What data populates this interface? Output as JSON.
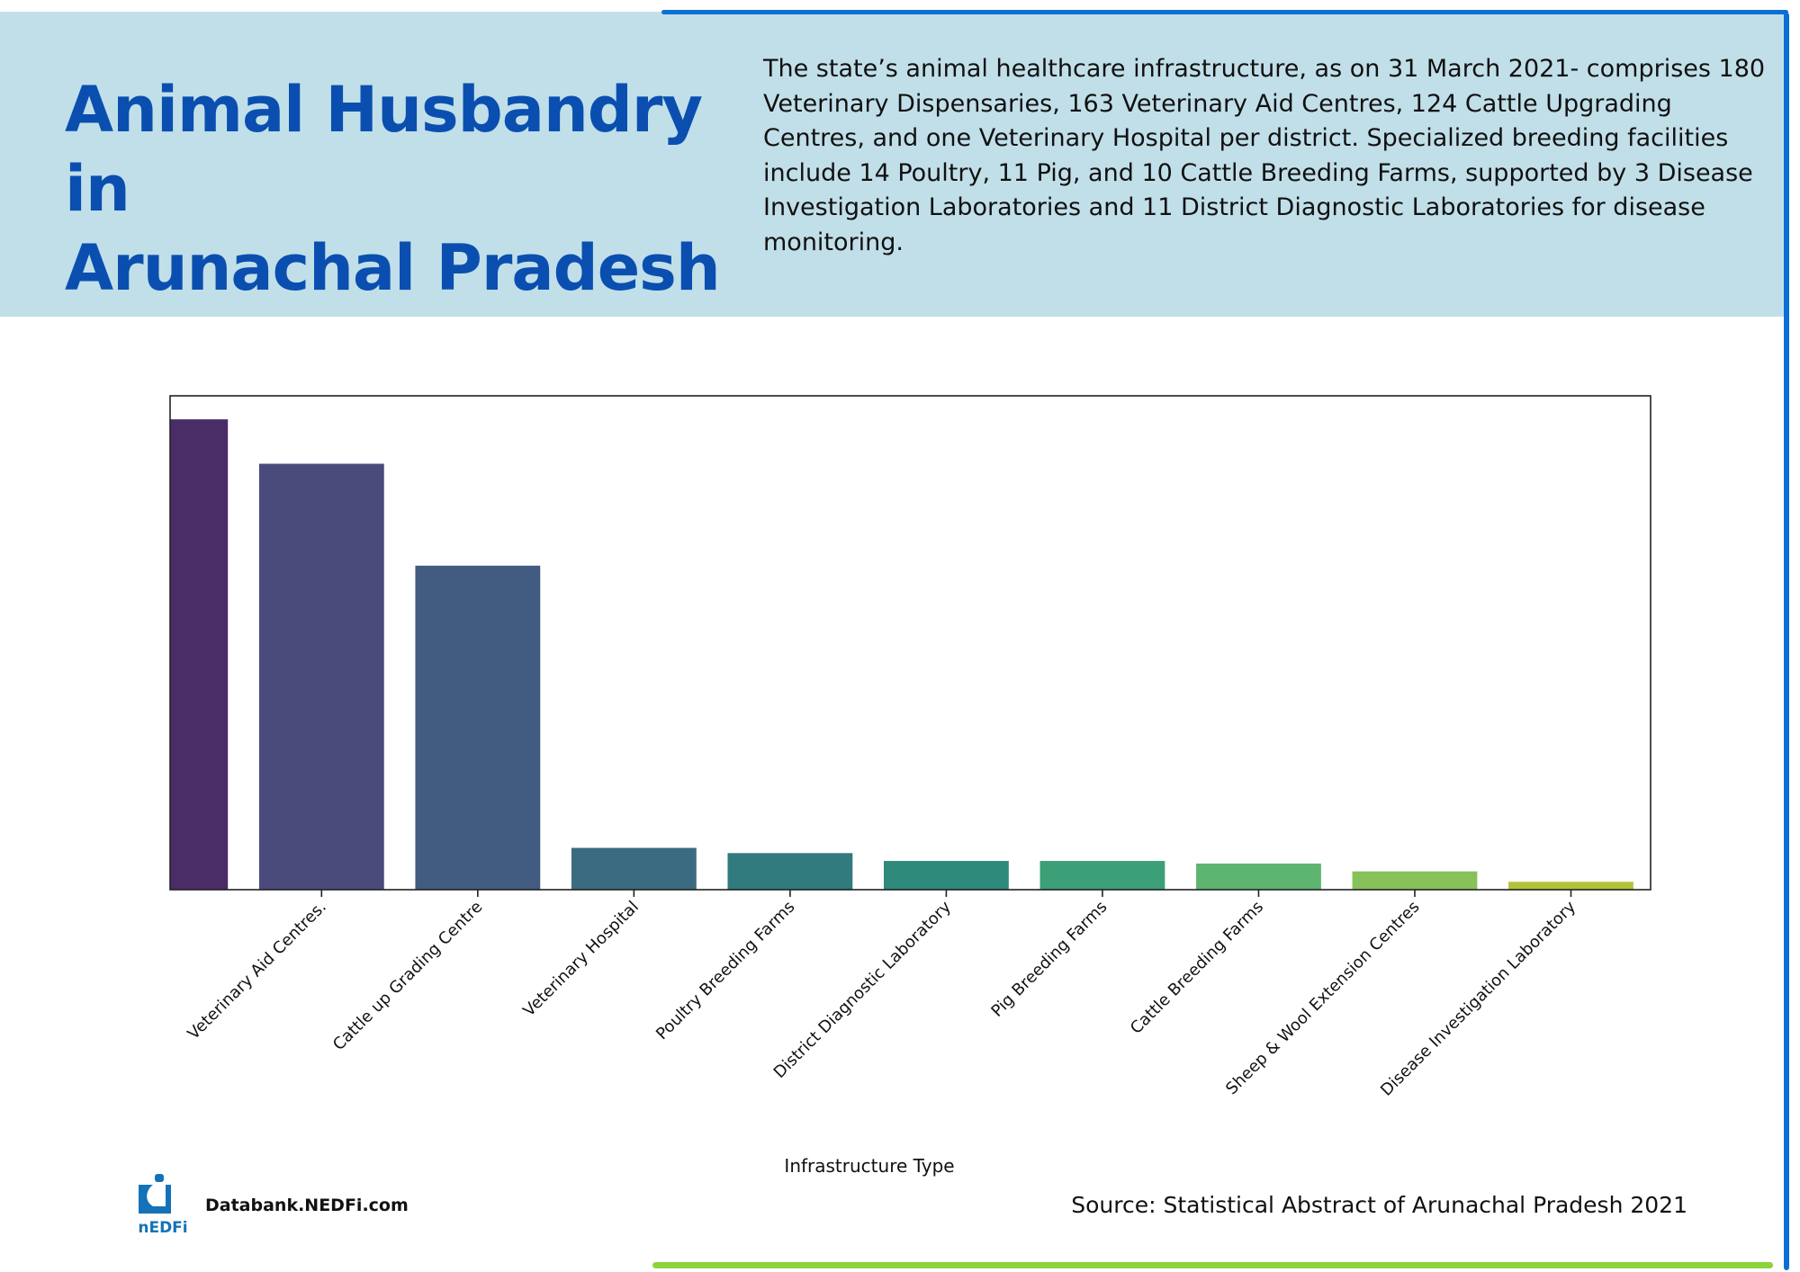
{
  "header": {
    "title_line1": "Animal Husbandry in",
    "title_line2": "Arunachal Pradesh",
    "description": "The state’s animal healthcare infrastructure, as on  31 March 2021- comprises 180 Veterinary Dispensaries, 163 Veterinary Aid Centres, 124 Cattle Upgrading Centres, and one Veterinary Hospital per district. Specialized breeding facilities include 14 Poultry, 11 Pig, and 10 Cattle Breeding Farms, supported by 3 Disease Investigation Laboratories and 11 District Diagnostic Laboratories for disease monitoring."
  },
  "footer": {
    "logo_text": "NEDFi",
    "site": "Databank.NEDFi.com",
    "source": "Source: Statistical Abstract of Arunachal Pradesh 2021"
  },
  "colors": {
    "header_bg": "#c1dfe9",
    "title": "#0a4fb0",
    "border_blue": "#0b6fd6",
    "border_green": "#8bd43a"
  },
  "chart_data": {
    "type": "bar",
    "title": "",
    "xlabel": "Infrastructure Type",
    "ylabel": "",
    "categories": [
      "",
      "Veterinary Aid Centres.",
      "Cattle up Grading Centre",
      "Veterinary Hospital",
      "Poultry Breeding Farms",
      "District Diagnostic Laboratory",
      "Pig Breeding Farms",
      "Cattle Breeding Farms",
      "Sheep & Wool Extension Centres",
      "Disease Investigation Laboratory"
    ],
    "values": [
      180,
      163,
      124,
      16,
      14,
      11,
      11,
      10,
      7,
      3
    ],
    "bar_colors": [
      "#4a2c66",
      "#4a4a7b",
      "#425b80",
      "#3b6b80",
      "#317a7d",
      "#2e8a7a",
      "#3ba077",
      "#5db571",
      "#86c15a",
      "#b2c33a"
    ],
    "ylim": [
      0,
      189
    ],
    "xlim": [
      0.03,
      9.51
    ],
    "bar_width": 0.8,
    "grid": false,
    "yticks_visible": false
  }
}
